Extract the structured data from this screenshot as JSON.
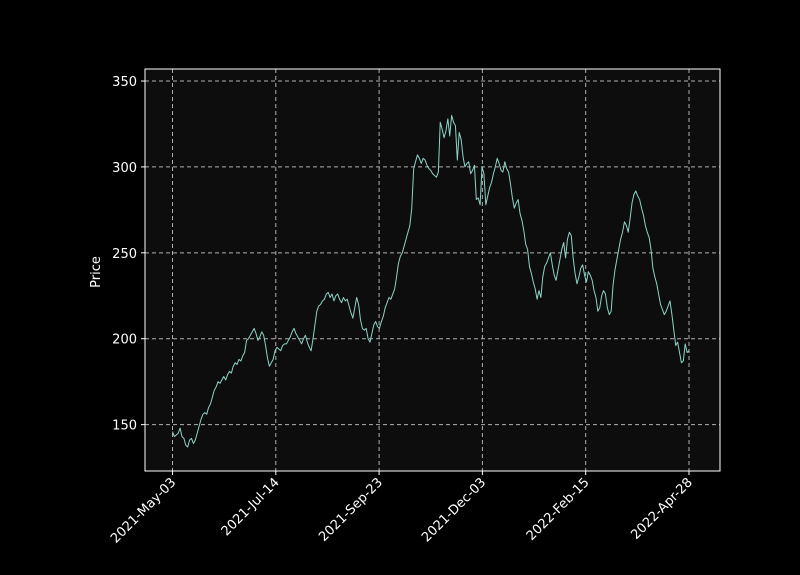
{
  "chart_data": {
    "type": "line",
    "title": "",
    "xlabel": "",
    "ylabel": "Price",
    "ylim": [
      123,
      357
    ],
    "yticks": [
      150,
      200,
      250,
      300,
      350
    ],
    "xticks": [
      "2021-May-03",
      "2021-Jul-14",
      "2021-Sep-23",
      "2021-Dec-03",
      "2022-Feb-15",
      "2022-Apr-28"
    ],
    "grid": true,
    "legend": "none",
    "colors": {
      "background": "#000000",
      "plot_background": "#0d0d0d",
      "line": "#8dd3c7",
      "grid": "#b0b0b0",
      "text": "#ffffff"
    },
    "series": [
      {
        "x_start": "2021-May-03",
        "x_end": "2022-Apr-28",
        "values": [
          146,
          143,
          144,
          145,
          148,
          143,
          142,
          138,
          137,
          141,
          142,
          139,
          141,
          145,
          149,
          153,
          156,
          157,
          156,
          160,
          162,
          166,
          170,
          172,
          175,
          174,
          176,
          178,
          176,
          179,
          181,
          180,
          184,
          186,
          185,
          188,
          187,
          190,
          192,
          199,
          200,
          202,
          204,
          206,
          203,
          199,
          201,
          204,
          202,
          196,
          189,
          184,
          186,
          188,
          193,
          195,
          194,
          193,
          196,
          197,
          197,
          199,
          201,
          204,
          206,
          203,
          201,
          199,
          197,
          200,
          202,
          198,
          195,
          193,
          200,
          208,
          216,
          219,
          220,
          222,
          223,
          226,
          227,
          224,
          226,
          222,
          225,
          226,
          223,
          221,
          224,
          222,
          223,
          219,
          215,
          212,
          218,
          224,
          220,
          211,
          206,
          205,
          206,
          200,
          198,
          203,
          208,
          210,
          207,
          206,
          210,
          213,
          218,
          221,
          224,
          223,
          226,
          229,
          236,
          244,
          248,
          250,
          254,
          258,
          262,
          266,
          276,
          299,
          303,
          307,
          305,
          302,
          305,
          304,
          301,
          299,
          298,
          296,
          295,
          294,
          297,
          326,
          322,
          317,
          321,
          328,
          318,
          330,
          326,
          324,
          304,
          320,
          316,
          306,
          300,
          302,
          303,
          296,
          298,
          301,
          281,
          282,
          278,
          300,
          296,
          278,
          283,
          288,
          291,
          296,
          300,
          305,
          302,
          298,
          297,
          303,
          299,
          297,
          290,
          282,
          276,
          279,
          281,
          273,
          269,
          263,
          255,
          252,
          242,
          238,
          233,
          229,
          223,
          228,
          224,
          236,
          242,
          244,
          247,
          250,
          243,
          237,
          234,
          240,
          246,
          252,
          256,
          247,
          258,
          262,
          260,
          247,
          238,
          232,
          236,
          241,
          243,
          237,
          233,
          239,
          237,
          234,
          228,
          224,
          216,
          218,
          225,
          228,
          226,
          218,
          214,
          216,
          231,
          240,
          246,
          252,
          258,
          262,
          268,
          266,
          262,
          270,
          279,
          284,
          286,
          283,
          281,
          276,
          272,
          266,
          262,
          259,
          252,
          241,
          236,
          232,
          226,
          220,
          217,
          214,
          216,
          219,
          222,
          214,
          205,
          196,
          198,
          192,
          186,
          187,
          197,
          192,
          193
        ]
      }
    ]
  }
}
